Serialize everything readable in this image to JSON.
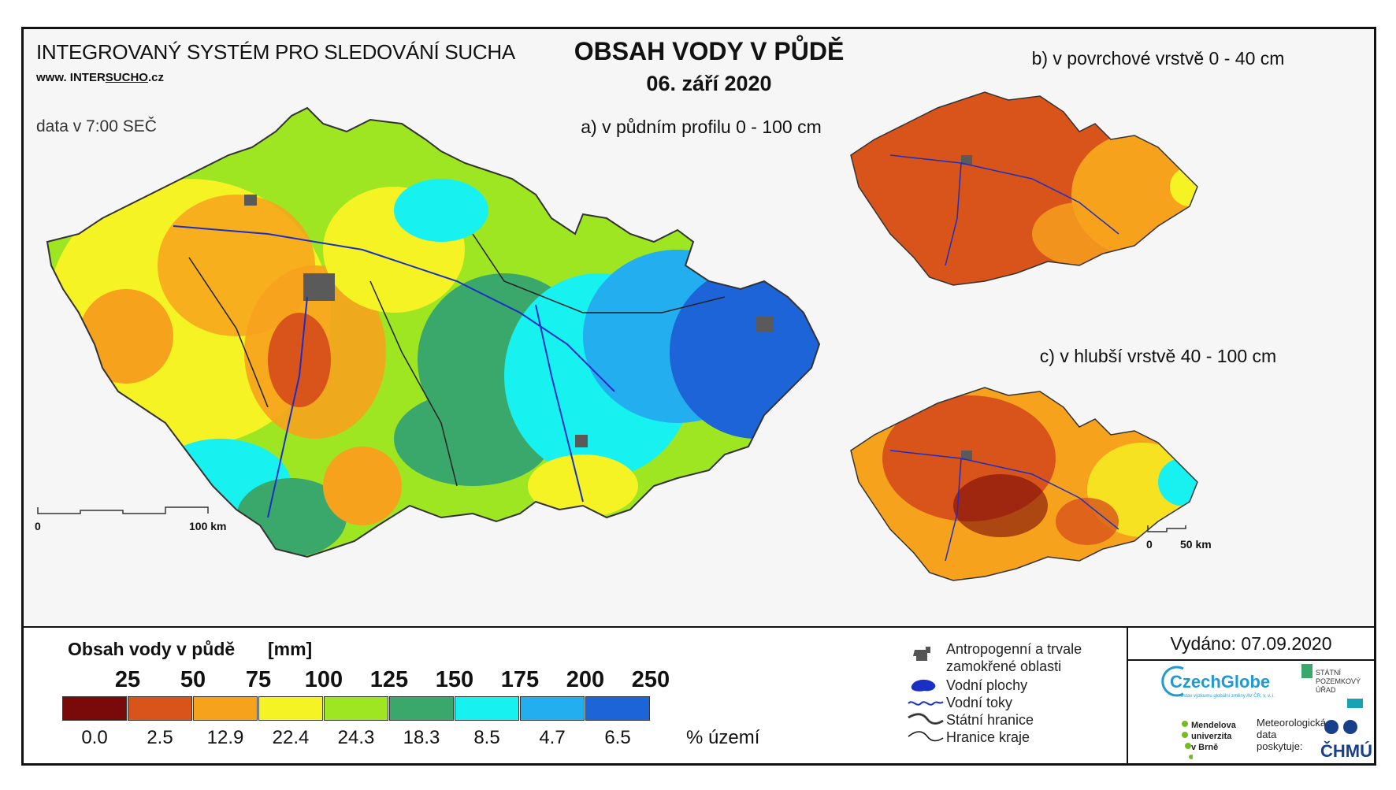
{
  "header": {
    "system_name": "INTEGROVANÝ SYSTÉM PRO SLEDOVÁNÍ SUCHA",
    "website_prefix": "www. INTER",
    "website_highlight": "SUCHO",
    "website_suffix": ".cz",
    "data_time": "data v 7:00 SEČ",
    "title": "OBSAH VODY V PŮDĚ",
    "date": "06. září 2020"
  },
  "maps": {
    "a_label": "a) v půdním profilu 0 - 100 cm",
    "b_label": "b) v povrchové vrstvě 0 - 40 cm",
    "c_label": "c) v hlubší vrstvě 40 - 100 cm"
  },
  "scale_main": {
    "start": "0",
    "end": "100 km"
  },
  "scale_small": {
    "start": "0",
    "end": "50 km"
  },
  "legend": {
    "title": "Obsah vody v půdě",
    "unit": "[mm]",
    "thresholds": [
      "25",
      "50",
      "75",
      "100",
      "125",
      "150",
      "175",
      "200",
      "250"
    ],
    "percent_label": "% území",
    "classes": [
      {
        "color": "#7a0a0a",
        "pct": "0.0"
      },
      {
        "color": "#d8541a",
        "pct": "2.5"
      },
      {
        "color": "#f7a21d",
        "pct": "12.9"
      },
      {
        "color": "#f6f324",
        "pct": "22.4"
      },
      {
        "color": "#9fe622",
        "pct": "24.3"
      },
      {
        "color": "#3aa86b",
        "pct": "18.3"
      },
      {
        "color": "#17f1f0",
        "pct": "8.5"
      },
      {
        "color": "#23aef0",
        "pct": "4.7"
      },
      {
        "color": "#1c64d8",
        "pct": "6.5"
      }
    ]
  },
  "map_legend": {
    "anthropogenic_1": "Antropogenní a trvale",
    "anthropogenic_2": "zamokřené oblasti",
    "water_bodies": "Vodní plochy",
    "rivers": "Vodní toky",
    "state_border": "Státní hranice",
    "region_border": "Hranice kraje"
  },
  "issued": "Vydáno: 07.09.2020",
  "logos": {
    "czechglobe": "CzechGlobe",
    "czechglobe_sub": "Ústav výzkumu globální změny AV ČR, v. v. i.",
    "spu_1": "STÁTNÍ",
    "spu_2": "POZEMKOVÝ",
    "spu_3": "ÚŘAD",
    "mendel_1": "Mendelova",
    "mendel_2": "univerzita",
    "mendel_3": "v Brně",
    "met_1": "Meteorologická",
    "met_2": "data",
    "met_3": "poskytuje:",
    "chmu": "ČHMÚ"
  }
}
